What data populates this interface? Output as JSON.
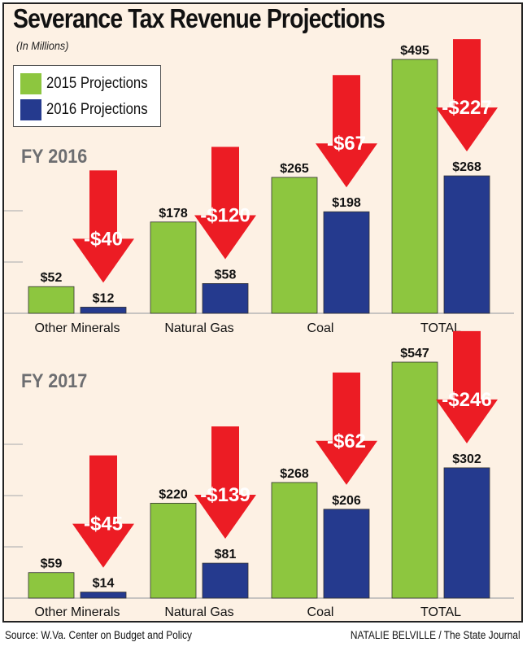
{
  "title": "Severance Tax Revenue Projections",
  "subtitle": "(In Millions)",
  "legend": [
    {
      "label": "2015 Projections",
      "color": "#8dc63f"
    },
    {
      "label": "2016 Projections",
      "color": "#253a8e"
    }
  ],
  "colors": {
    "arrow": "#ec1c24",
    "background": "#fdf1e4",
    "gridline": "#a7a9ac"
  },
  "chart_data": [
    {
      "type": "bar",
      "title": "FY 2016",
      "categories": [
        "Other Minerals",
        "Natural Gas",
        "Coal",
        "TOTAL"
      ],
      "series": [
        {
          "name": "2015 Projections",
          "values": [
            52,
            178,
            265,
            495
          ],
          "labels": [
            "$52",
            "$178",
            "$265",
            "$495"
          ]
        },
        {
          "name": "2016 Projections",
          "values": [
            12,
            58,
            198,
            268
          ],
          "labels": [
            "$12",
            "$58",
            "$198",
            "$268"
          ]
        }
      ],
      "changes": [
        "-$40",
        "-$120",
        "-$67",
        "-$227"
      ]
    },
    {
      "type": "bar",
      "title": "FY 2017",
      "categories": [
        "Other Minerals",
        "Natural Gas",
        "Coal",
        "TOTAL"
      ],
      "series": [
        {
          "name": "2015 Projections",
          "values": [
            59,
            220,
            268,
            547
          ],
          "labels": [
            "$59",
            "$220",
            "$268",
            "$547"
          ]
        },
        {
          "name": "2016 Projections",
          "values": [
            14,
            81,
            206,
            302
          ],
          "labels": [
            "$14",
            "$81",
            "$206",
            "$302"
          ]
        }
      ],
      "changes": [
        "-$45",
        "-$139",
        "-$62",
        "-$246"
      ]
    }
  ],
  "source": "Source: W.Va. Center on Budget and Policy",
  "credit": "NATALIE BELVILLE / The State Journal"
}
